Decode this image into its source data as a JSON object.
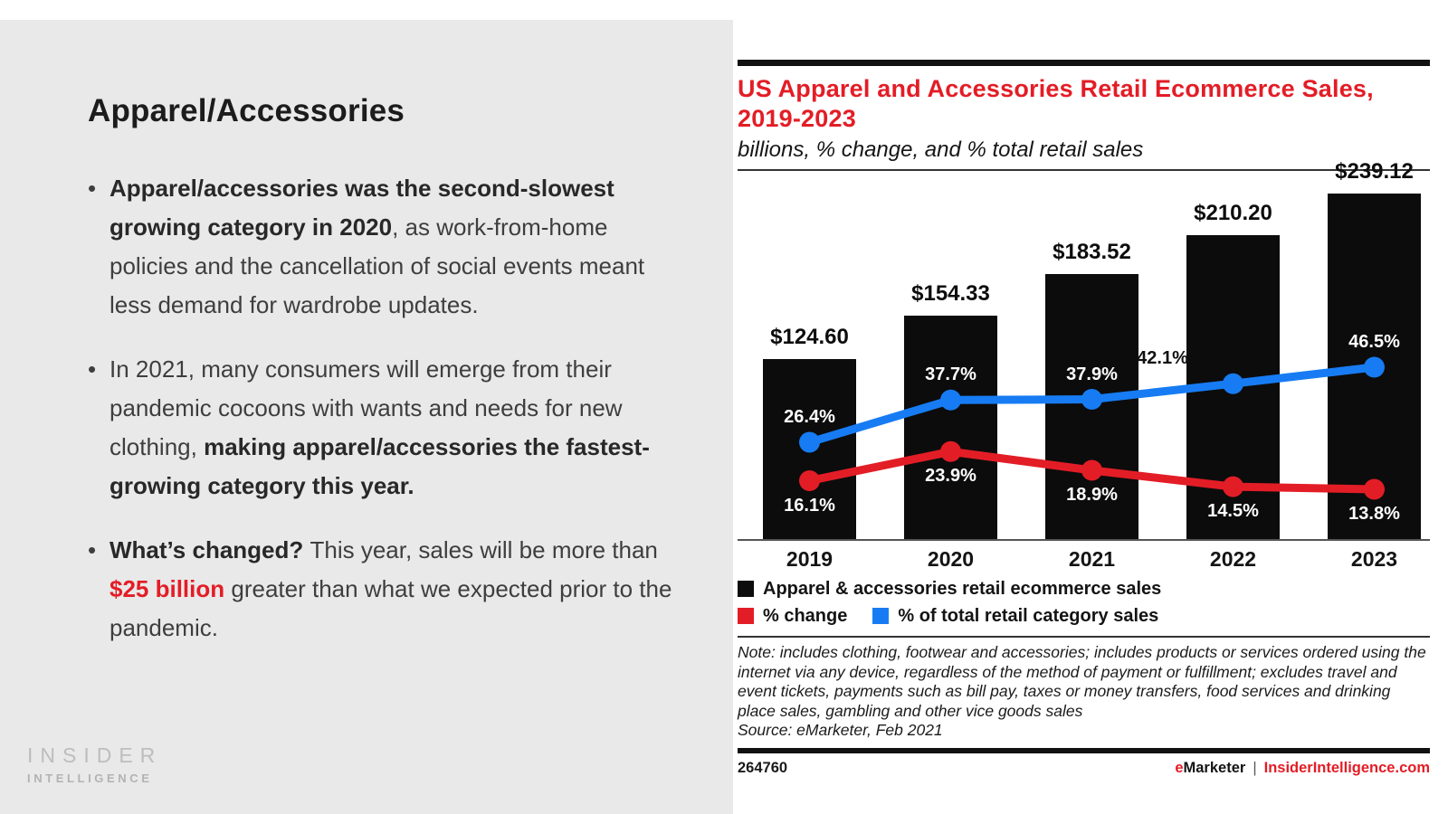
{
  "left_panel": {
    "title": "Apparel/Accessories",
    "bullets": [
      {
        "segments": [
          {
            "text": "Apparel/accessories was the second-slowest growing category in 2020",
            "bold": true
          },
          {
            "text": ", as work-from-home policies and the cancellation of social events meant less demand for wardrobe updates.",
            "bold": false
          }
        ]
      },
      {
        "segments": [
          {
            "text": "In 2021, many consumers will emerge from their pandemic cocoons with wants and needs for new clothing, ",
            "bold": false
          },
          {
            "text": "making apparel/accessories the fastest-growing category this year.",
            "bold": true
          }
        ]
      },
      {
        "segments": [
          {
            "text": "What’s changed? ",
            "bold": true
          },
          {
            "text": "This year, sales will be more than ",
            "bold": false
          },
          {
            "text": "$25 billion",
            "bold": true,
            "color": "red"
          },
          {
            "text": " greater than what we expected prior to the pandemic.",
            "bold": false
          }
        ]
      }
    ],
    "logo": {
      "line1": "INSIDER",
      "line2": "INTELLIGENCE"
    }
  },
  "chart": {
    "title": "US Apparel and Accessories Retail Ecommerce Sales, 2019-2023",
    "subtitle": "billions, % change, and % total retail sales",
    "note": "Note: includes clothing, footwear and accessories; includes products or services ordered using the internet via any device, regardless of the method of payment or fulfillment; excludes travel and event tickets, payments such as bill pay, taxes or money transfers, food services and drinking place sales, gambling and other vice goods sales",
    "source": "Source: eMarketer, Feb 2021",
    "footer": {
      "id": "264760",
      "brand_e": "e",
      "brand_rest": "Marketer",
      "separator": "|",
      "site": "InsiderIntelligence.com"
    }
  },
  "chart_data": {
    "type": "bar+line",
    "title": "US Apparel and Accessories Retail Ecommerce Sales, 2019-2023",
    "subtitle_units": "billions, % change, and % total retail sales",
    "categories": [
      "2019",
      "2020",
      "2021",
      "2022",
      "2023"
    ],
    "series": [
      {
        "name": "Apparel & accessories retail ecommerce sales",
        "type": "bar",
        "unit": "USD billions",
        "values": [
          124.6,
          154.33,
          183.52,
          210.2,
          239.12
        ],
        "value_labels": [
          "$124.60",
          "$154.33",
          "$183.52",
          "$210.20",
          "$239.12"
        ],
        "color": "#0c0c0c"
      },
      {
        "name": "% change",
        "type": "line",
        "unit": "%",
        "values": [
          16.1,
          23.9,
          18.9,
          14.5,
          13.8
        ],
        "value_labels": [
          "16.1%",
          "23.9%",
          "18.9%",
          "14.5%",
          "13.8%"
        ],
        "color": "#e31d26"
      },
      {
        "name": "% of total retail category sales",
        "type": "line",
        "unit": "%",
        "values": [
          26.4,
          37.7,
          37.9,
          42.1,
          46.5
        ],
        "value_labels": [
          "26.4%",
          "37.7%",
          "37.9%",
          "42.1%",
          "46.5%"
        ],
        "color": "#177cf3"
      }
    ],
    "legend": [
      {
        "label": "Apparel & accessories retail ecommerce sales",
        "color": "#0c0c0c"
      },
      {
        "label": "% change",
        "color": "#e31d26"
      },
      {
        "label": "% of total retail category sales",
        "color": "#177cf3"
      }
    ],
    "legend_position": "bottom-left",
    "grid": false,
    "y_axis_visible": false
  }
}
